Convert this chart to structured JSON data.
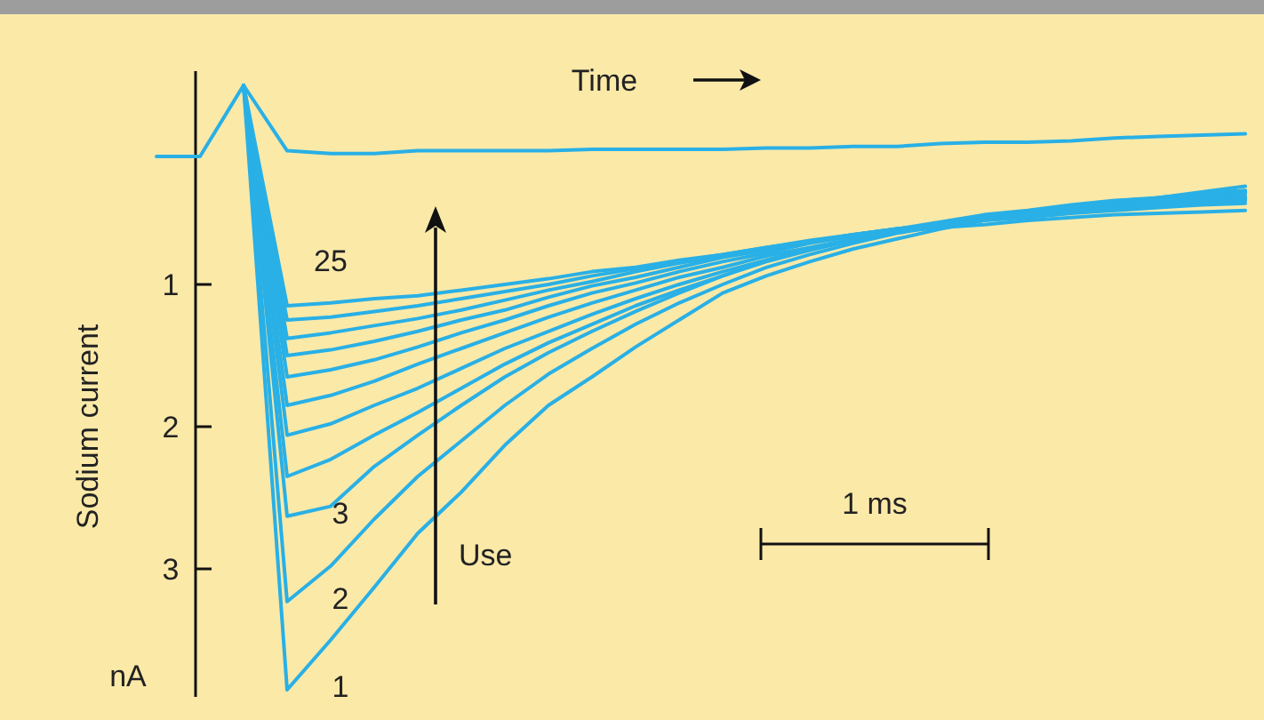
{
  "chart_data": {
    "type": "line",
    "ylabel": "Sodium current",
    "ylim": [
      3.9,
      -0.5
    ],
    "yticks": [
      1,
      2,
      3
    ],
    "tick_labels": "y",
    "grid": false,
    "marker": "none",
    "line_style": "solid",
    "categories": [
      null,
      null,
      null,
      null,
      null,
      null,
      null,
      null,
      null,
      null,
      null,
      null,
      null,
      null,
      null,
      null,
      null,
      null,
      null,
      null,
      null,
      null,
      null,
      null,
      null,
      null
    ],
    "annotations": [
      "Time",
      "Use",
      "1 ms",
      "nA",
      "1",
      "2",
      "3",
      "25"
    ],
    "series": [
      {
        "color": "#29b0e6",
        "values": [
          0.1,
          0.1,
          -0.4,
          0.06,
          0.08,
          0.08,
          0.06,
          0.06,
          0.06,
          0.06,
          0.05,
          0.05,
          0.05,
          0.05,
          0.04,
          0.04,
          0.03,
          0.03,
          0.01,
          0,
          0,
          -0.01,
          -0.03,
          -0.04,
          -0.05,
          -0.06
        ]
      },
      {
        "color": "#29b0e6",
        "values": [
          null,
          null,
          -0.4,
          3.85,
          3.5,
          3.13,
          2.75,
          2.46,
          2.13,
          1.85,
          1.65,
          1.44,
          1.25,
          1.06,
          0.94,
          0.84,
          0.75,
          0.68,
          0.61,
          0.55,
          0.5,
          0.46,
          0.43,
          0.39,
          0.35,
          0.31
        ]
      },
      {
        "color": "#29b0e6",
        "values": [
          null,
          null,
          -0.4,
          3.23,
          2.98,
          2.65,
          2.35,
          2.1,
          1.85,
          1.63,
          1.45,
          1.28,
          1.13,
          1.0,
          0.88,
          0.79,
          0.71,
          0.64,
          0.59,
          0.54,
          0.49,
          0.45,
          0.43,
          0.39,
          0.36,
          0.34
        ]
      },
      {
        "color": "#29b0e6",
        "values": [
          null,
          null,
          -0.4,
          2.63,
          2.56,
          2.28,
          2.06,
          1.85,
          1.65,
          1.48,
          1.33,
          1.19,
          1.06,
          0.94,
          0.83,
          0.75,
          0.68,
          0.61,
          0.56,
          0.51,
          0.48,
          0.44,
          0.41,
          0.39,
          0.36,
          0.34
        ]
      },
      {
        "color": "#29b0e6",
        "values": [
          null,
          null,
          -0.4,
          2.35,
          2.23,
          2.06,
          1.9,
          1.73,
          1.56,
          1.41,
          1.28,
          1.15,
          1.04,
          0.94,
          0.84,
          0.76,
          0.69,
          0.63,
          0.58,
          0.53,
          0.49,
          0.45,
          0.43,
          0.4,
          0.38,
          0.35
        ]
      },
      {
        "color": "#29b0e6",
        "values": [
          null,
          null,
          -0.4,
          2.06,
          1.98,
          1.85,
          1.73,
          1.59,
          1.45,
          1.33,
          1.21,
          1.1,
          1.0,
          0.91,
          0.83,
          0.75,
          0.69,
          0.63,
          0.58,
          0.53,
          0.49,
          0.46,
          0.44,
          0.41,
          0.39,
          0.36
        ]
      },
      {
        "color": "#29b0e6",
        "values": [
          null,
          null,
          -0.4,
          1.85,
          1.78,
          1.68,
          1.56,
          1.45,
          1.34,
          1.23,
          1.13,
          1.04,
          0.95,
          0.88,
          0.8,
          0.74,
          0.68,
          0.63,
          0.58,
          0.54,
          0.5,
          0.48,
          0.45,
          0.43,
          0.4,
          0.38
        ]
      },
      {
        "color": "#29b0e6",
        "values": [
          null,
          null,
          -0.4,
          1.65,
          1.6,
          1.53,
          1.44,
          1.34,
          1.25,
          1.15,
          1.06,
          0.99,
          0.91,
          0.84,
          0.78,
          0.71,
          0.66,
          0.61,
          0.58,
          0.54,
          0.5,
          0.48,
          0.45,
          0.43,
          0.4,
          0.39
        ]
      },
      {
        "color": "#29b0e6",
        "values": [
          null,
          null,
          -0.4,
          1.5,
          1.46,
          1.4,
          1.33,
          1.25,
          1.18,
          1.09,
          1.01,
          0.95,
          0.88,
          0.81,
          0.76,
          0.7,
          0.65,
          0.61,
          0.58,
          0.54,
          0.5,
          0.48,
          0.45,
          0.44,
          0.41,
          0.4
        ]
      },
      {
        "color": "#29b0e6",
        "values": [
          null,
          null,
          -0.4,
          1.38,
          1.34,
          1.29,
          1.24,
          1.18,
          1.11,
          1.04,
          0.98,
          0.91,
          0.85,
          0.8,
          0.75,
          0.7,
          0.65,
          0.61,
          0.58,
          0.54,
          0.51,
          0.49,
          0.46,
          0.45,
          0.43,
          0.41
        ]
      },
      {
        "color": "#29b0e6",
        "values": [
          null,
          null,
          -0.4,
          1.25,
          1.23,
          1.19,
          1.15,
          1.1,
          1.05,
          1.0,
          0.94,
          0.89,
          0.84,
          0.79,
          0.74,
          0.69,
          0.65,
          0.61,
          0.58,
          0.55,
          0.53,
          0.5,
          0.48,
          0.46,
          0.44,
          0.43
        ]
      },
      {
        "color": "#29b0e6",
        "values": [
          null,
          null,
          -0.4,
          1.15,
          1.13,
          1.1,
          1.08,
          1.04,
          1.0,
          0.96,
          0.91,
          0.88,
          0.83,
          0.79,
          0.74,
          0.7,
          0.66,
          0.63,
          0.6,
          0.58,
          0.55,
          0.53,
          0.51,
          0.5,
          0.49,
          0.48
        ]
      }
    ]
  }
}
